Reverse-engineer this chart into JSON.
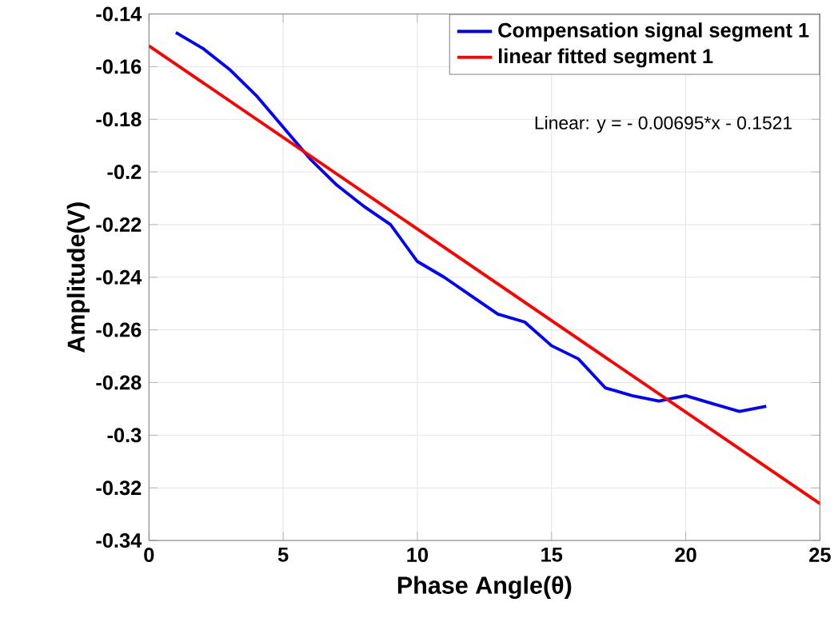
{
  "chart_data": {
    "type": "line",
    "xlabel": "Phase Angle(θ)",
    "ylabel": "Amplitude(V)",
    "series": [
      {
        "name": "Compensation signal segment 1",
        "color": "#0000ff",
        "x": [
          1,
          2,
          3,
          4,
          5,
          6,
          7,
          8,
          9,
          10,
          11,
          12,
          13,
          14,
          15,
          16,
          17,
          18,
          19,
          20,
          21,
          22,
          23
        ],
        "values": [
          -0.147,
          -0.153,
          -0.161,
          -0.171,
          -0.183,
          -0.195,
          -0.205,
          -0.213,
          -0.22,
          -0.234,
          -0.24,
          -0.247,
          -0.254,
          -0.257,
          -0.266,
          -0.271,
          -0.282,
          -0.285,
          -0.287,
          -0.285,
          -0.288,
          -0.291,
          -0.289
        ]
      },
      {
        "name": "linear fitted segment 1",
        "color": "#ff0000",
        "x": [
          0,
          25
        ],
        "values": [
          -0.1521,
          -0.326
        ]
      }
    ],
    "annotations": [
      "Linear:  y = - 0.00695*x - 0.1521"
    ],
    "xlim": [
      0,
      25
    ],
    "ylim": [
      -0.34,
      -0.14
    ],
    "xticks": [
      0,
      5,
      10,
      15,
      20,
      25
    ],
    "yticks": [
      -0.34,
      -0.32,
      -0.3,
      -0.28,
      -0.26,
      -0.24,
      -0.22,
      -0.2,
      -0.18,
      -0.16,
      -0.14
    ],
    "grid": true,
    "legend": "top right",
    "marker": "none",
    "line_style": "solid"
  }
}
